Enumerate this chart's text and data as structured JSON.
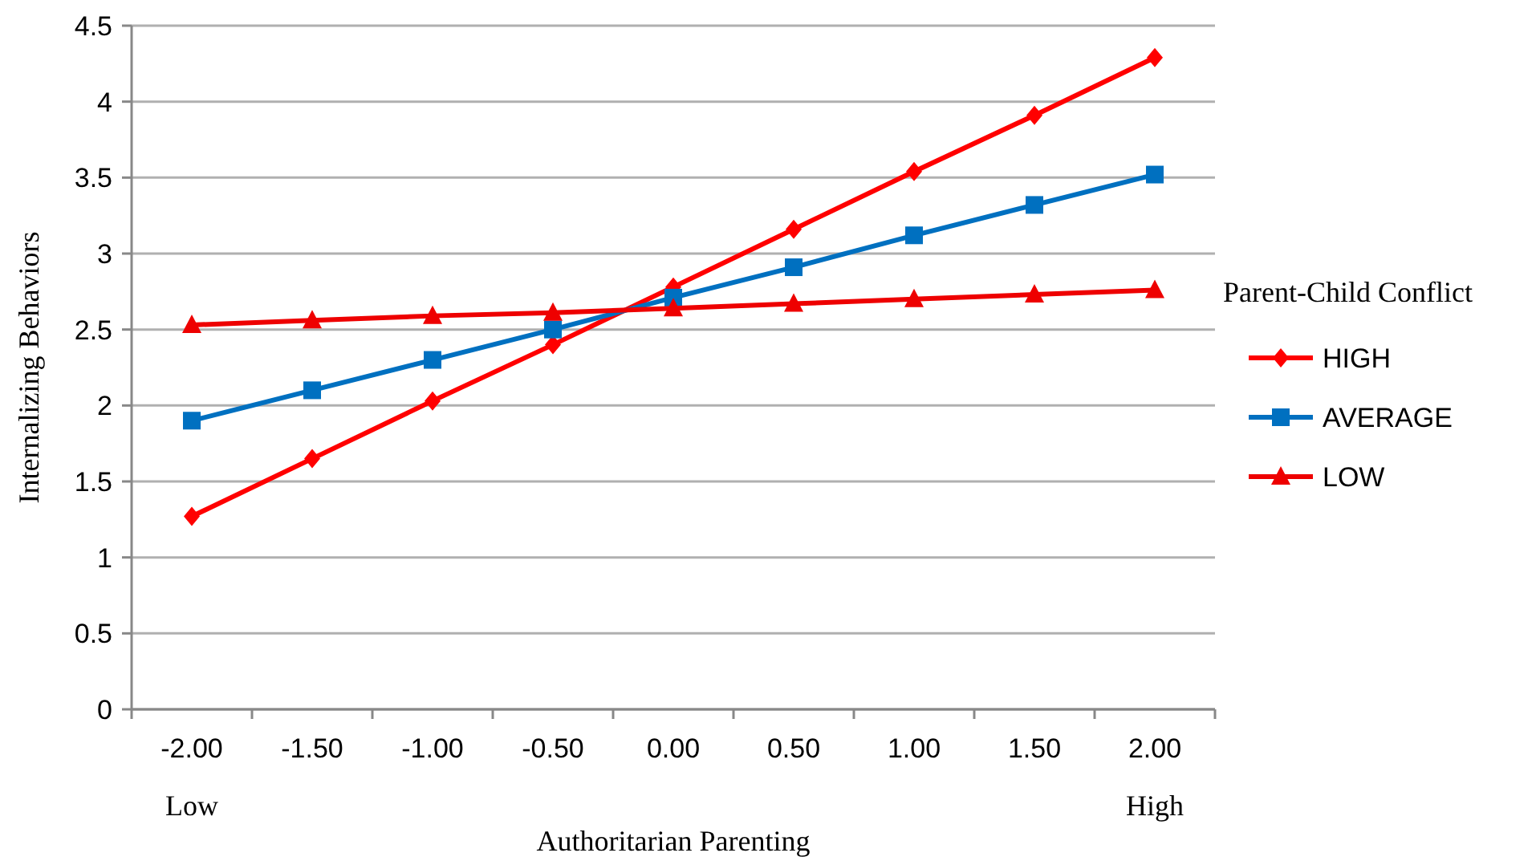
{
  "chart_data": {
    "type": "line",
    "xlabel": "Authoritarian Parenting",
    "ylabel": "Internalizing Behaviors",
    "legend_title": "Parent-Child Conflict",
    "categories": [
      "-2.00",
      "-1.50",
      "-1.00",
      "-0.50",
      "0.00",
      "0.50",
      "1.00",
      "1.50",
      "2.00"
    ],
    "series": [
      {
        "name": "HIGH",
        "color": "#ff0000",
        "marker": "diamond",
        "values": [
          1.27,
          1.65,
          2.03,
          2.4,
          2.78,
          3.16,
          3.54,
          3.91,
          4.29
        ]
      },
      {
        "name": "AVERAGE",
        "color": "#0070c0",
        "marker": "square",
        "values": [
          1.9,
          2.1,
          2.3,
          2.5,
          2.71,
          2.91,
          3.12,
          3.32,
          3.52
        ]
      },
      {
        "name": "LOW",
        "color": "#ee0000",
        "marker": "triangle",
        "values": [
          2.53,
          2.56,
          2.59,
          2.61,
          2.64,
          2.67,
          2.7,
          2.73,
          2.76
        ]
      }
    ],
    "ylim": [
      0,
      4.5
    ],
    "yticks": [
      0,
      0.5,
      1,
      1.5,
      2,
      2.5,
      3,
      3.5,
      4,
      4.5
    ],
    "grid": "y",
    "legend": "right",
    "line_style": "solid",
    "annotations": [
      "Low",
      "High"
    ]
  }
}
